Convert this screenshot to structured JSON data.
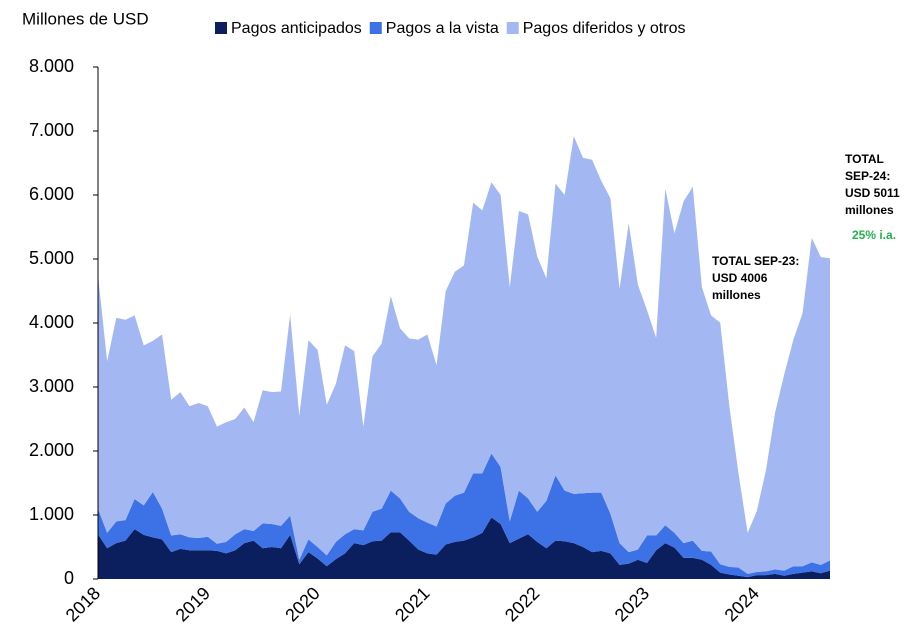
{
  "chart_data": {
    "type": "stacked_area",
    "y_axis_label": "Millones de USD",
    "categories": [
      "2018",
      null,
      null,
      null,
      null,
      null,
      null,
      null,
      null,
      null,
      null,
      null,
      "2019",
      null,
      null,
      null,
      null,
      null,
      null,
      null,
      null,
      null,
      null,
      null,
      "2020",
      null,
      null,
      null,
      null,
      null,
      null,
      null,
      null,
      null,
      null,
      null,
      "2021",
      null,
      null,
      null,
      null,
      null,
      null,
      null,
      null,
      null,
      null,
      null,
      "2022",
      null,
      null,
      null,
      null,
      null,
      null,
      null,
      null,
      null,
      null,
      null,
      "2023",
      null,
      null,
      null,
      null,
      null,
      null,
      null,
      null,
      null,
      null,
      null,
      "2024",
      null,
      null,
      null,
      null,
      null,
      null,
      null,
      null
    ],
    "series": [
      {
        "name": "Pagos anticipados",
        "color": "#0b1f5e",
        "values": [
          700,
          480,
          560,
          600,
          780,
          690,
          650,
          620,
          420,
          470,
          450,
          450,
          450,
          440,
          400,
          450,
          560,
          600,
          480,
          500,
          480,
          690,
          230,
          420,
          320,
          200,
          310,
          400,
          560,
          530,
          590,
          600,
          730,
          730,
          600,
          460,
          400,
          380,
          540,
          580,
          600,
          650,
          720,
          960,
          860,
          560,
          630,
          700,
          580,
          480,
          600,
          590,
          560,
          500,
          420,
          440,
          400,
          220,
          240,
          300,
          250,
          450,
          560,
          490,
          330,
          330,
          300,
          220,
          100,
          70,
          50,
          30,
          60,
          60,
          80,
          50,
          80,
          100,
          120,
          90,
          130
        ]
      },
      {
        "name": "Pagos a la vista",
        "color": "#3d72e6",
        "values": [
          400,
          240,
          340,
          320,
          470,
          460,
          710,
          480,
          260,
          230,
          200,
          190,
          210,
          110,
          180,
          250,
          220,
          150,
          390,
          360,
          350,
          300,
          70,
          200,
          180,
          170,
          270,
          300,
          220,
          230,
          460,
          500,
          650,
          530,
          450,
          490,
          480,
          440,
          640,
          720,
          750,
          1000,
          930,
          1000,
          890,
          340,
          750,
          560,
          470,
          740,
          1020,
          790,
          770,
          840,
          930,
          910,
          620,
          340,
          180,
          160,
          430,
          230,
          280,
          230,
          230,
          270,
          140,
          210,
          130,
          120,
          130,
          50,
          50,
          60,
          70,
          80,
          120,
          100,
          140,
          130,
          160
        ]
      },
      {
        "name": "Pagos diferidos y otros",
        "color": "#a3b8f3",
        "values": [
          3650,
          2680,
          3180,
          3130,
          2870,
          2500,
          2360,
          2720,
          2120,
          2220,
          2050,
          2110,
          2040,
          1830,
          1870,
          1800,
          1900,
          1700,
          2080,
          2060,
          2100,
          3140,
          2250,
          3110,
          3080,
          2350,
          2470,
          2950,
          2780,
          1620,
          2430,
          2580,
          3040,
          2660,
          2710,
          2790,
          2940,
          2520,
          3320,
          3500,
          3550,
          4230,
          4110,
          4240,
          4250,
          3660,
          4370,
          4440,
          3990,
          3480,
          4560,
          4620,
          5590,
          5240,
          5200,
          4870,
          4930,
          3970,
          5140,
          4140,
          3520,
          3090,
          5260,
          4680,
          5340,
          5530,
          4120,
          3690,
          3776,
          2510,
          1470,
          640,
          950,
          1580,
          2450,
          3070,
          3540,
          3950,
          5070,
          4810,
          4721
        ]
      }
    ],
    "ylim": [
      0,
      8000
    ],
    "yticks": [
      0,
      {
        "value": 1000,
        "label": "1.000"
      },
      {
        "value": 2000,
        "label": "2.000"
      },
      {
        "value": 3000,
        "label": "3.000"
      },
      {
        "value": 4000,
        "label": "4.000"
      },
      {
        "value": 5000,
        "label": "5.000"
      },
      {
        "value": 6000,
        "label": "6.000"
      },
      {
        "value": 7000,
        "label": "7.000"
      },
      {
        "value": 8000,
        "label": "8.000"
      }
    ],
    "annotations": [
      {
        "lines": [
          "TOTAL SEP-23:",
          "USD 4006",
          "millones"
        ]
      },
      {
        "lines": [
          "TOTAL",
          "SEP-24:",
          "USD 5011",
          "millones"
        ]
      },
      {
        "lines": [
          "25% i.a."
        ],
        "color": "#22b14c"
      }
    ],
    "legend": "top"
  }
}
